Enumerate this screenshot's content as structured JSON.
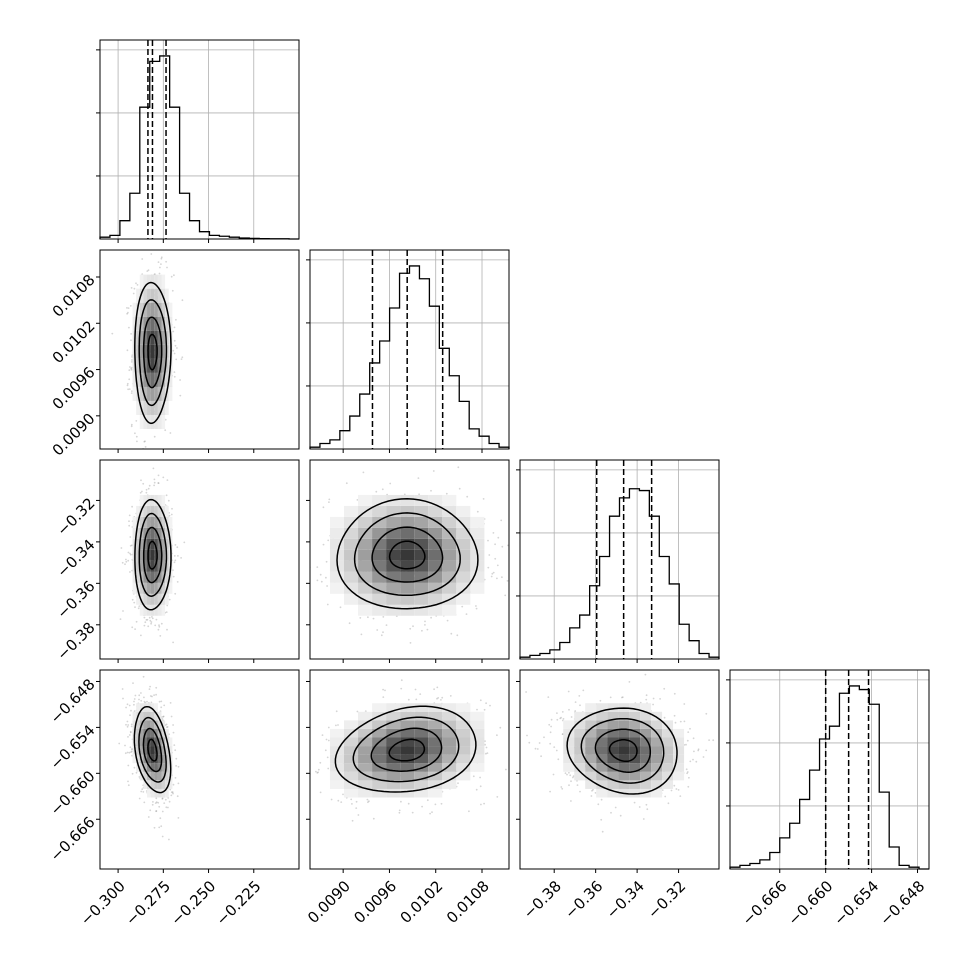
{
  "chart_data": {
    "type": "corner",
    "parameters": [
      {
        "range": [
          -0.31,
          -0.2
        ],
        "ticks": [
          -0.3,
          -0.275,
          -0.25,
          -0.225
        ],
        "tick_labels": [
          "−0.300",
          "−0.275",
          "−0.250",
          "−0.225"
        ],
        "quantiles": [
          -0.2835,
          -0.281,
          -0.2735
        ],
        "median": -0.281
      },
      {
        "range": [
          0.00857,
          0.01115
        ],
        "ticks": [
          0.009,
          0.0096,
          0.0102,
          0.0108
        ],
        "tick_labels": [
          "0.0090",
          "0.0096",
          "0.0102",
          "0.0108"
        ],
        "quantiles": [
          0.00938,
          0.00983,
          0.01029
        ],
        "median": 0.00983
      },
      {
        "range": [
          -0.3965,
          -0.3005
        ],
        "ticks": [
          -0.38,
          -0.36,
          -0.34,
          -0.32
        ],
        "tick_labels": [
          "−0.38",
          "−0.36",
          "−0.34",
          "−0.32"
        ],
        "quantiles": [
          -0.3595,
          -0.3465,
          -0.333
        ],
        "median": -0.3465
      },
      {
        "range": [
          -0.6725,
          -0.6465
        ],
        "ticks": [
          -0.666,
          -0.66,
          -0.654,
          -0.648
        ],
        "tick_labels": [
          "−0.666",
          "−0.660",
          "−0.654",
          "−0.648"
        ],
        "quantiles": [
          -0.66,
          -0.657,
          -0.6544
        ],
        "median": -0.657
      }
    ],
    "histograms": [
      [
        0.01,
        0.02,
        0.1,
        0.25,
        0.72,
        0.97,
        1.0,
        0.72,
        0.25,
        0.1,
        0.04,
        0.02,
        0.015,
        0.01,
        0.005,
        0.003,
        0.002,
        0.001,
        0.001,
        0.0
      ],
      [
        0.01,
        0.03,
        0.05,
        0.1,
        0.18,
        0.3,
        0.47,
        0.59,
        0.77,
        0.96,
        1.0,
        0.93,
        0.78,
        0.55,
        0.4,
        0.26,
        0.11,
        0.07,
        0.03,
        0.01
      ],
      [
        0.01,
        0.02,
        0.03,
        0.05,
        0.09,
        0.17,
        0.24,
        0.4,
        0.56,
        0.78,
        0.88,
        0.93,
        0.92,
        0.78,
        0.56,
        0.41,
        0.19,
        0.1,
        0.03,
        0.01
      ],
      [
        0.01,
        0.02,
        0.03,
        0.05,
        0.09,
        0.17,
        0.25,
        0.38,
        0.54,
        0.71,
        0.78,
        0.96,
        1.0,
        0.98,
        0.9,
        0.42,
        0.12,
        0.02,
        0.01,
        0.0
      ]
    ],
    "correlations": {
      "1_0": 0.0,
      "2_0": 0.0,
      "2_1": 0.0,
      "3_0": -0.35,
      "3_1": 0.2,
      "3_2": -0.1
    },
    "contour_levels": [
      0.5,
      1.0,
      1.5,
      2.0
    ],
    "grid": true
  }
}
